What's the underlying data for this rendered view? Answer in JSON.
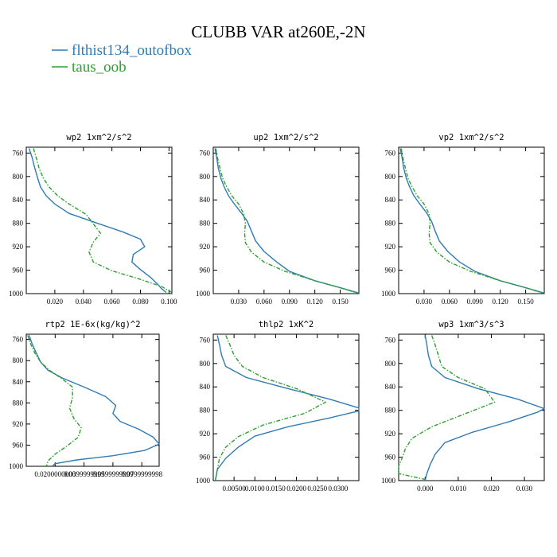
{
  "figure": {
    "title": "CLUBB VAR at260E,-2N",
    "legend": [
      {
        "label": "flthist134_outofbox",
        "color": "#2f7bb4",
        "dash": "solid"
      },
      {
        "label": "taus_oob",
        "color": "#2ca02c",
        "dash": "dashdot"
      }
    ]
  },
  "chart_data": [
    {
      "type": "line",
      "title": "wp2   1xm^2/s^2",
      "ylim": [
        1000,
        750
      ],
      "yticks": [
        760,
        800,
        840,
        880,
        920,
        960,
        1000
      ],
      "xlim": [
        0.0,
        0.102
      ],
      "xticks": [
        {
          "v": 0.02,
          "label": "0.020"
        },
        {
          "v": 0.04,
          "label": "0.040"
        },
        {
          "v": 0.06,
          "label": "0.060"
        },
        {
          "v": 0.08,
          "label": "0.080"
        },
        {
          "v": 0.1,
          "label": "0.100"
        }
      ],
      "series": [
        {
          "name": "flthist134_outofbox",
          "x": [
            0.002,
            0.004,
            0.006,
            0.008,
            0.01,
            0.014,
            0.02,
            0.03,
            0.05,
            0.068,
            0.08,
            0.083,
            0.075,
            0.074,
            0.08,
            0.087,
            0.092,
            0.095,
            0.098
          ],
          "y": [
            752,
            767,
            786,
            803,
            818,
            833,
            847,
            863,
            880,
            895,
            907,
            920,
            933,
            946,
            959,
            972,
            984,
            992,
            998
          ]
        },
        {
          "name": "taus_oob",
          "x": [
            0.005,
            0.007,
            0.009,
            0.012,
            0.016,
            0.022,
            0.03,
            0.042,
            0.052,
            0.047,
            0.044,
            0.047,
            0.06,
            0.078,
            0.095,
            0.102
          ],
          "y": [
            752,
            768,
            786,
            803,
            818,
            833,
            847,
            865,
            897,
            912,
            929,
            946,
            961,
            974,
            988,
            998
          ]
        }
      ]
    },
    {
      "type": "line",
      "title": "up2   1xm^2/s^2",
      "ylim": [
        1000,
        750
      ],
      "yticks": [
        760,
        800,
        840,
        880,
        920,
        960,
        1000
      ],
      "xlim": [
        0.0,
        0.172
      ],
      "xticks": [
        {
          "v": 0.03,
          "label": "0.030"
        },
        {
          "v": 0.06,
          "label": "0.060"
        },
        {
          "v": 0.09,
          "label": "0.090"
        },
        {
          "v": 0.12,
          "label": "0.120"
        },
        {
          "v": 0.15,
          "label": "0.150"
        }
      ],
      "series": [
        {
          "name": "flthist134_outofbox",
          "x": [
            0.002,
            0.004,
            0.006,
            0.009,
            0.013,
            0.018,
            0.025,
            0.033,
            0.04,
            0.045,
            0.05,
            0.06,
            0.075,
            0.09,
            0.12,
            0.15,
            0.172
          ],
          "y": [
            752,
            768,
            786,
            803,
            818,
            833,
            847,
            862,
            876,
            893,
            910,
            928,
            946,
            962,
            978,
            990,
            999
          ]
        },
        {
          "name": "taus_oob",
          "x": [
            0.003,
            0.005,
            0.008,
            0.011,
            0.016,
            0.022,
            0.03,
            0.036,
            0.038,
            0.037,
            0.038,
            0.045,
            0.06,
            0.085,
            0.12,
            0.15,
            0.17
          ],
          "y": [
            752,
            768,
            786,
            803,
            818,
            833,
            847,
            864,
            880,
            897,
            913,
            929,
            946,
            962,
            978,
            990,
            999
          ]
        }
      ]
    },
    {
      "type": "line",
      "title": "vp2   1xm^2/s^2",
      "ylim": [
        1000,
        750
      ],
      "yticks": [
        760,
        800,
        840,
        880,
        920,
        960,
        1000
      ],
      "xlim": [
        0.0,
        0.172
      ],
      "xticks": [
        {
          "v": 0.03,
          "label": "0.030"
        },
        {
          "v": 0.06,
          "label": "0.060"
        },
        {
          "v": 0.09,
          "label": "0.090"
        },
        {
          "v": 0.12,
          "label": "0.120"
        },
        {
          "v": 0.15,
          "label": "0.150"
        }
      ],
      "series": [
        {
          "name": "flthist134_outofbox",
          "x": [
            0.002,
            0.004,
            0.006,
            0.009,
            0.013,
            0.018,
            0.025,
            0.033,
            0.039,
            0.043,
            0.048,
            0.058,
            0.072,
            0.09,
            0.12,
            0.15,
            0.172
          ],
          "y": [
            752,
            768,
            786,
            803,
            818,
            833,
            847,
            862,
            877,
            893,
            910,
            928,
            946,
            962,
            978,
            990,
            999
          ]
        },
        {
          "name": "taus_oob",
          "x": [
            0.003,
            0.005,
            0.008,
            0.011,
            0.016,
            0.022,
            0.03,
            0.036,
            0.037,
            0.036,
            0.037,
            0.045,
            0.06,
            0.085,
            0.12,
            0.15,
            0.17
          ],
          "y": [
            752,
            768,
            786,
            803,
            818,
            833,
            847,
            864,
            880,
            897,
            913,
            929,
            946,
            962,
            978,
            990,
            999
          ]
        }
      ]
    },
    {
      "type": "line",
      "title": "rtp2   1E-6x(kg/kg)^2",
      "ylim": [
        1000,
        750
      ],
      "yticks": [
        760,
        800,
        840,
        880,
        920,
        960,
        1000
      ],
      "xlim": [
        0.0,
        0.092
      ],
      "xticks": [
        {
          "v": 0.02,
          "label": "0.0200000000"
        },
        {
          "v": 0.04,
          "label": "0.0399999999"
        },
        {
          "v": 0.06,
          "label": "0.0599999999"
        },
        {
          "v": 0.08,
          "label": "0.0799999998"
        }
      ],
      "series": [
        {
          "name": "flthist134_outofbox",
          "x": [
            0.002,
            0.004,
            0.007,
            0.01,
            0.015,
            0.025,
            0.04,
            0.055,
            0.062,
            0.06,
            0.065,
            0.078,
            0.088,
            0.092,
            0.082,
            0.06,
            0.035,
            0.02,
            0.018
          ],
          "y": [
            752,
            768,
            786,
            803,
            818,
            833,
            850,
            868,
            885,
            900,
            915,
            930,
            945,
            958,
            970,
            980,
            988,
            995,
            1000
          ]
        },
        {
          "name": "taus_oob",
          "x": [
            0.001,
            0.003,
            0.006,
            0.01,
            0.016,
            0.024,
            0.032,
            0.032,
            0.03,
            0.033,
            0.038,
            0.036,
            0.028,
            0.02,
            0.015,
            0.014
          ],
          "y": [
            752,
            768,
            786,
            803,
            818,
            833,
            850,
            870,
            890,
            910,
            927,
            945,
            962,
            977,
            990,
            1000
          ]
        }
      ]
    },
    {
      "type": "line",
      "title": "thlp2   1xK^2",
      "ylim": [
        1000,
        750
      ],
      "yticks": [
        760,
        800,
        840,
        880,
        920,
        960,
        1000
      ],
      "xlim": [
        0.0,
        0.035
      ],
      "xticks": [
        {
          "v": 0.005,
          "label": "0.00500"
        },
        {
          "v": 0.01,
          "label": "0.0100"
        },
        {
          "v": 0.015,
          "label": "0.0150"
        },
        {
          "v": 0.02,
          "label": "0.0200"
        },
        {
          "v": 0.025,
          "label": "0.0250"
        },
        {
          "v": 0.03,
          "label": "0.0300"
        }
      ],
      "series": [
        {
          "name": "flthist134_outofbox",
          "x": [
            0.001,
            0.0015,
            0.002,
            0.003,
            0.008,
            0.018,
            0.028,
            0.035,
            0.035,
            0.028,
            0.018,
            0.01,
            0.006,
            0.003,
            0.001,
            0.0005
          ],
          "y": [
            752,
            768,
            786,
            805,
            824,
            843,
            861,
            876,
            881,
            893,
            908,
            924,
            943,
            962,
            981,
            1000
          ]
        },
        {
          "name": "taus_oob",
          "x": [
            0.003,
            0.004,
            0.005,
            0.007,
            0.012,
            0.02,
            0.027,
            0.022,
            0.012,
            0.006,
            0.003,
            0.0015,
            0.001,
            0.0005
          ],
          "y": [
            752,
            768,
            786,
            805,
            824,
            843,
            866,
            885,
            905,
            925,
            943,
            962,
            981,
            1000
          ]
        }
      ]
    },
    {
      "type": "line",
      "title": "wp3   1xm^3/s^3",
      "ylim": [
        1000,
        750
      ],
      "yticks": [
        760,
        800,
        840,
        880,
        920,
        960,
        1000
      ],
      "xlim": [
        -0.008,
        0.036
      ],
      "xticks": [
        {
          "v": 0.0,
          "label": "0.000"
        },
        {
          "v": 0.01,
          "label": "0.010"
        },
        {
          "v": 0.02,
          "label": "0.020"
        },
        {
          "v": 0.03,
          "label": "0.030"
        }
      ],
      "series": [
        {
          "name": "flthist134_outofbox",
          "x": [
            0.0,
            0.0005,
            0.001,
            0.002,
            0.006,
            0.016,
            0.028,
            0.036,
            0.034,
            0.025,
            0.014,
            0.006,
            0.003,
            0.0015,
            0.0005,
            0.0
          ],
          "y": [
            752,
            768,
            786,
            805,
            824,
            843,
            861,
            877,
            883,
            900,
            918,
            935,
            955,
            973,
            988,
            1000
          ]
        },
        {
          "name": "taus_oob",
          "x": [
            0.002,
            0.003,
            0.004,
            0.005,
            0.01,
            0.018,
            0.021,
            0.012,
            0.002,
            -0.004,
            -0.006,
            -0.007,
            -0.008,
            -0.008,
            0.0
          ],
          "y": [
            752,
            768,
            786,
            805,
            824,
            843,
            866,
            886,
            908,
            928,
            946,
            962,
            975,
            988,
            998
          ]
        }
      ]
    }
  ]
}
